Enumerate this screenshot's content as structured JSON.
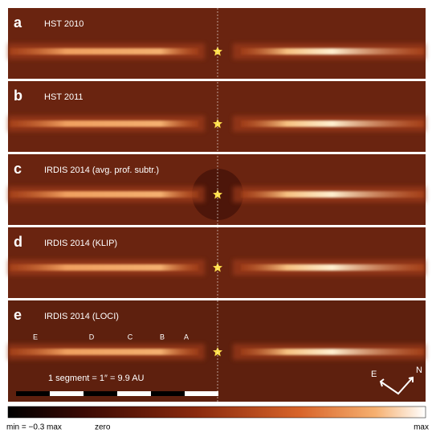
{
  "panels": [
    {
      "letter": "a",
      "title": "HST 2010"
    },
    {
      "letter": "b",
      "title": "HST 2011"
    },
    {
      "letter": "c",
      "title": "IRDIS 2014 (avg. prof. subtr.)"
    },
    {
      "letter": "d",
      "title": "IRDIS 2014 (KLIP)"
    },
    {
      "letter": "e",
      "title": "IRDIS 2014 (LOCI)"
    }
  ],
  "features": [
    "E",
    "D",
    "C",
    "B",
    "A"
  ],
  "scale_text": "1 segment = 1″ = 9.9 AU",
  "compass": {
    "east": "E",
    "north": "N"
  },
  "colorbar": {
    "min_label": "min = −0.3 max",
    "zero_label": "zero",
    "max_label": "max"
  }
}
